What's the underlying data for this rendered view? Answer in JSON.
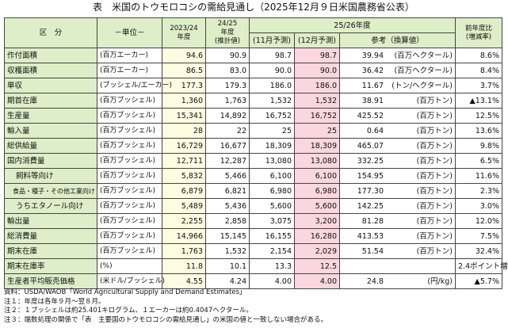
{
  "title": "表　米国のトウモロコシの需給見通し（2025年12月９日米国農務省公表）",
  "header": {
    "category": "区　分",
    "unit": "－単位－",
    "y2324": "2023/24\n年度",
    "y2425_line1": "24/25",
    "y2425_line2": "年度",
    "y2425_line3": "(推計値)",
    "y2526": "25/26年度",
    "nov": "(11月予測)",
    "dec": "(12月予測)",
    "ref": "参考（換算値）",
    "chg_line1": "前年度比",
    "chg_line2": "(増減率)"
  },
  "rows": [
    {
      "label": "作付面積",
      "indent": 0,
      "unit": "(百万エーカー)",
      "y2324": "94.6",
      "y2425": "90.9",
      "nov": "98.7",
      "dec": "98.7",
      "ref_val": "39.94",
      "ref_unit": "(百万ヘクタール)",
      "chg": "8.6%"
    },
    {
      "label": "収穫面積",
      "indent": 0,
      "unit": "(百万エーカー)",
      "y2324": "86.5",
      "y2425": "83.0",
      "nov": "90.0",
      "dec": "90.0",
      "ref_val": "36.42",
      "ref_unit": "(百万ヘクタール)",
      "chg": "8.4%"
    },
    {
      "label": "単収",
      "indent": 0,
      "unit": "(ブッシェル/エーカー)",
      "y2324": "177.3",
      "y2425": "179.3",
      "nov": "186.0",
      "dec": "186.0",
      "ref_val": "11.67",
      "ref_unit": "(トン/ヘクタール)",
      "chg": "3.7%"
    },
    {
      "label": "期首在庫",
      "indent": 0,
      "unit": "(百万ブッシェル)",
      "y2324": "1,360",
      "y2425": "1,763",
      "nov": "1,532",
      "dec": "1,532",
      "ref_val": "38.91",
      "ref_unit": "(百万トン)",
      "chg": "▲13.1%"
    },
    {
      "label": "生産量",
      "indent": 0,
      "unit": "(百万ブッシェル)",
      "y2324": "15,341",
      "y2425": "14,892",
      "nov": "16,752",
      "dec": "16,752",
      "ref_val": "425.52",
      "ref_unit": "(百万トン)",
      "chg": "12.5%"
    },
    {
      "label": "輸入量",
      "indent": 0,
      "unit": "(百万ブッシェル)",
      "y2324": "28",
      "y2425": "22",
      "nov": "25",
      "dec": "25",
      "ref_val": "0.64",
      "ref_unit": "(百万トン)",
      "chg": "13.6%"
    },
    {
      "label": "総供給量",
      "indent": 0,
      "unit": "(百万ブッシェル)",
      "y2324": "16,729",
      "y2425": "16,677",
      "nov": "18,309",
      "dec": "18,309",
      "ref_val": "465.07",
      "ref_unit": "(百万トン)",
      "chg": "9.8%"
    },
    {
      "label": "国内消費量",
      "indent": 0,
      "unit": "(百万ブッシェル)",
      "y2324": "12,711",
      "y2425": "12,287",
      "nov": "13,080",
      "dec": "13,080",
      "ref_val": "332.25",
      "ref_unit": "(百万トン)",
      "chg": "6.5%"
    },
    {
      "label": "飼料等向け",
      "indent": 1,
      "unit": "(百万ブッシェル)",
      "y2324": "5,832",
      "y2425": "5,466",
      "nov": "6,100",
      "dec": "6,100",
      "ref_val": "154.95",
      "ref_unit": "(百万トン)",
      "chg": "11.6%"
    },
    {
      "label": "食品・種子・その他工業向け",
      "indent": 2,
      "unit": "(百万ブッシェル)",
      "y2324": "6,879",
      "y2425": "6,821",
      "nov": "6,980",
      "dec": "6,980",
      "ref_val": "177.30",
      "ref_unit": "(百万トン)",
      "chg": "2.3%"
    },
    {
      "label": "うちエタノール向け",
      "indent": 3,
      "unit": "(百万ブッシェル)",
      "y2324": "5,489",
      "y2425": "5,436",
      "nov": "5,600",
      "dec": "5,600",
      "ref_val": "142.25",
      "ref_unit": "(百万トン)",
      "chg": "3.0%"
    },
    {
      "label": "輸出量",
      "indent": 0,
      "unit": "(百万ブッシェル)",
      "y2324": "2,255",
      "y2425": "2,858",
      "nov": "3,075",
      "dec": "3,200",
      "ref_val": "81.28",
      "ref_unit": "(百万トン)",
      "chg": "12.0%"
    },
    {
      "label": "総消費量",
      "indent": 0,
      "unit": "(百万ブッシェル)",
      "y2324": "14,966",
      "y2425": "15,145",
      "nov": "16,155",
      "dec": "16,280",
      "ref_val": "413.53",
      "ref_unit": "(百万トン)",
      "chg": "7.5%"
    },
    {
      "label": "期末在庫",
      "indent": 0,
      "unit": "(百万ブッシェル)",
      "y2324": "1,763",
      "y2425": "1,532",
      "nov": "2,154",
      "dec": "2,029",
      "ref_val": "51.54",
      "ref_unit": "(百万トン)",
      "chg": "32.4%"
    },
    {
      "label": "期末在庫率",
      "indent": 0,
      "unit": "(%)",
      "y2324": "11.8",
      "y2425": "10.1",
      "nov": "13.3",
      "dec": "12.5",
      "ref_val": "",
      "ref_unit": "",
      "chg": "2.4ポイント増"
    },
    {
      "label": "生産者平均販売価格",
      "indent": 0,
      "unit": "(米ドル/ブッシェル)",
      "y2324": "4.55",
      "y2425": "4.24",
      "nov": "4.00",
      "dec": "4.00",
      "ref_val": "24.8",
      "ref_unit": "(円/kg)",
      "chg": "▲5.7%"
    }
  ],
  "notes": [
    "資料：USDA/WAOB「World Agricultural Supply and Demand Estimates」",
    "注１：年度は各年９月～翌８月。",
    "注２：１ブッシェルは約25.401キログラム、１エーカーは約0.4047ヘクタール。",
    "注３：端数処理の関係で「表　主要国のトウモロコシの需給見通し」の米国の値と一致しない場合がある。"
  ]
}
